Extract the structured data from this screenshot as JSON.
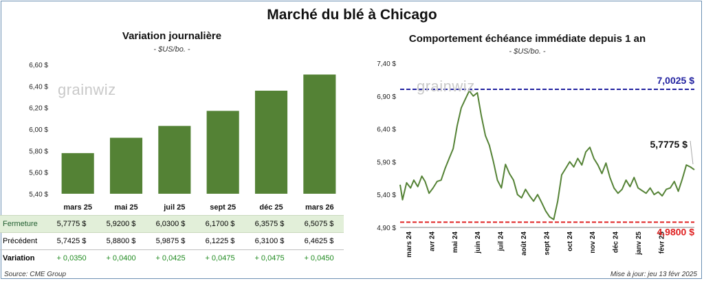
{
  "title": "Marché du blé à Chicago",
  "source": "Source: CME Group",
  "updated": "Mise à jour: jeu 13 févr 2025",
  "logo_text": "grainwiz",
  "colors": {
    "bar": "#548235",
    "line": "#548235",
    "high": "#1f1f9f",
    "low": "#e02020"
  },
  "chart_data": [
    {
      "type": "bar",
      "title": "Variation journalière",
      "unit_label": "- $US/bo. -",
      "categories": [
        "mars 25",
        "mai 25",
        "juil 25",
        "sept 25",
        "déc 25",
        "mars 26"
      ],
      "values": [
        5.7775,
        5.92,
        6.03,
        6.17,
        6.3575,
        6.5075
      ],
      "ylim": [
        5.4,
        6.6
      ],
      "yticks": [
        "5,40 $",
        "5,60 $",
        "5,80 $",
        "6,00 $",
        "6,20 $",
        "6,40 $",
        "6,60 $"
      ],
      "grid": false
    },
    {
      "type": "line",
      "title": "Comportement échéance immédiate depuis 1 an",
      "unit_label": "- $US/bo. -",
      "ylim": [
        4.9,
        7.4
      ],
      "yticks": [
        "4,90 $",
        "5,40 $",
        "5,90 $",
        "6,40 $",
        "6,90 $",
        "7,40 $"
      ],
      "xticks": [
        "mars 24",
        "avr 24",
        "mai 24",
        "juin 24",
        "juil 24",
        "août 24",
        "sept 24",
        "oct 24",
        "nov 24",
        "déc 24",
        "janv 25",
        "févr 25"
      ],
      "x": [
        "2024-02-13",
        "2024-02-16",
        "2024-02-21",
        "2024-02-26",
        "2024-03-01",
        "2024-03-06",
        "2024-03-11",
        "2024-03-15",
        "2024-03-20",
        "2024-03-25",
        "2024-03-30",
        "2024-04-04",
        "2024-04-09",
        "2024-04-14",
        "2024-04-19",
        "2024-04-24",
        "2024-04-29",
        "2024-05-04",
        "2024-05-09",
        "2024-05-14",
        "2024-05-19",
        "2024-05-24",
        "2024-05-29",
        "2024-06-03",
        "2024-06-08",
        "2024-06-13",
        "2024-06-18",
        "2024-06-23",
        "2024-06-28",
        "2024-07-03",
        "2024-07-08",
        "2024-07-13",
        "2024-07-18",
        "2024-07-23",
        "2024-07-28",
        "2024-08-02",
        "2024-08-07",
        "2024-08-12",
        "2024-08-17",
        "2024-08-22",
        "2024-08-27",
        "2024-09-01",
        "2024-09-06",
        "2024-09-11",
        "2024-09-16",
        "2024-09-21",
        "2024-09-26",
        "2024-10-01",
        "2024-10-06",
        "2024-10-11",
        "2024-10-16",
        "2024-10-21",
        "2024-10-26",
        "2024-10-31",
        "2024-11-05",
        "2024-11-10",
        "2024-11-15",
        "2024-11-20",
        "2024-11-25",
        "2024-11-30",
        "2024-12-05",
        "2024-12-10",
        "2024-12-15",
        "2024-12-20",
        "2024-12-25",
        "2024-12-30",
        "2025-01-04",
        "2025-01-09",
        "2025-01-14",
        "2025-01-19",
        "2025-01-24",
        "2025-01-29",
        "2025-02-03",
        "2025-02-08",
        "2025-02-13"
      ],
      "y": [
        5.55,
        5.32,
        5.58,
        5.5,
        5.62,
        5.52,
        5.68,
        5.6,
        5.42,
        5.5,
        5.6,
        5.62,
        5.8,
        5.95,
        6.1,
        6.45,
        6.72,
        6.85,
        6.98,
        6.9,
        6.95,
        6.6,
        6.3,
        6.15,
        5.9,
        5.62,
        5.5,
        5.86,
        5.72,
        5.62,
        5.4,
        5.35,
        5.48,
        5.38,
        5.3,
        5.4,
        5.28,
        5.15,
        5.06,
        5.02,
        5.3,
        5.7,
        5.8,
        5.9,
        5.82,
        5.95,
        5.85,
        6.05,
        6.12,
        5.95,
        5.85,
        5.72,
        5.88,
        5.66,
        5.5,
        5.42,
        5.48,
        5.62,
        5.52,
        5.66,
        5.5,
        5.46,
        5.42,
        5.5,
        5.4,
        5.44,
        5.38,
        5.48,
        5.5,
        5.6,
        5.45,
        5.64,
        5.85,
        5.82,
        5.7775
      ],
      "hlines": [
        {
          "label": "7,0025 $",
          "value": 7.0025
        },
        {
          "label": "4,9800 $",
          "value": 4.98
        }
      ],
      "last_label": "5,7775 $",
      "grid": false
    }
  ],
  "table": {
    "rows": [
      {
        "label": "Fermeture",
        "values": [
          "5,7775  $",
          "5,9200  $",
          "6,0300  $",
          "6,1700  $",
          "6,3575  $",
          "6,5075  $"
        ]
      },
      {
        "label": "Précédent",
        "values": [
          "5,7425  $",
          "5,8800  $",
          "5,9875  $",
          "6,1225  $",
          "6,3100  $",
          "6,4625  $"
        ]
      },
      {
        "label": "Variation",
        "values": [
          "+ 0,0350",
          "+ 0,0400",
          "+ 0,0425",
          "+ 0,0475",
          "+ 0,0475",
          "+ 0,0450"
        ]
      }
    ]
  }
}
